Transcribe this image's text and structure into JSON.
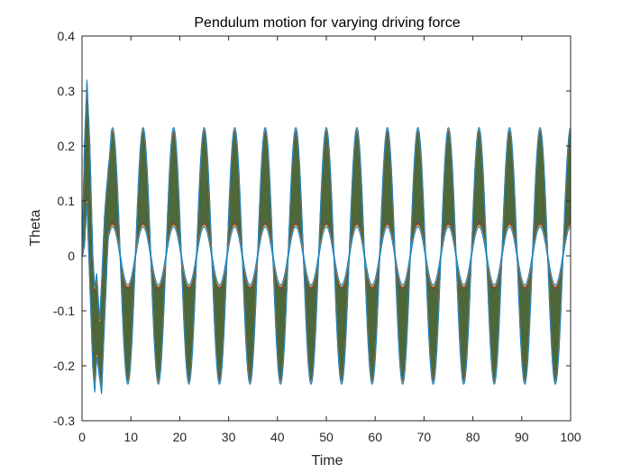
{
  "chart_data": {
    "type": "line",
    "title": "Pendulum motion for varying driving force",
    "xlabel": "Time",
    "ylabel": "Theta",
    "xlim": [
      0,
      100
    ],
    "ylim": [
      -0.3,
      0.4
    ],
    "x_ticks": [
      0,
      10,
      20,
      30,
      40,
      50,
      60,
      70,
      80,
      90,
      100
    ],
    "y_ticks": [
      -0.3,
      -0.2,
      -0.1,
      0,
      0.1,
      0.2,
      0.3,
      0.4
    ],
    "x_tick_labels": [
      "0",
      "10",
      "20",
      "30",
      "40",
      "50",
      "60",
      "70",
      "80",
      "90",
      "100"
    ],
    "y_tick_labels": [
      "-0.3",
      "-0.2",
      "-0.1",
      "0",
      "0.1",
      "0.2",
      "0.3",
      "0.4"
    ],
    "grid": false,
    "legend": "none",
    "series_colors": [
      "#7e2f8e",
      "#a2142f",
      "#77ac30",
      "#d95319",
      "#edb120",
      "#4dbeee",
      "#0072bd"
    ],
    "band_color": "#6b5a3a",
    "envelope": {
      "steady_period": 6.25,
      "outer_peak": 0.23,
      "outer_trough": -0.23,
      "inner_peak": 0.055,
      "inner_trough": -0.057,
      "transient_points": [
        {
          "t": 0,
          "upper": 0.0,
          "lower": 0.0
        },
        {
          "t": 0.5,
          "upper": 0.2,
          "lower": 0.02
        },
        {
          "t": 1.0,
          "upper": 0.317,
          "lower": 0.1
        },
        {
          "t": 1.6,
          "upper": 0.2,
          "lower": -0.05
        },
        {
          "t": 2.2,
          "upper": 0.0,
          "lower": -0.2
        },
        {
          "t": 2.6,
          "upper": -0.06,
          "lower": -0.245
        },
        {
          "t": 3.0,
          "upper": -0.035,
          "lower": -0.18
        },
        {
          "t": 3.6,
          "upper": -0.12,
          "lower": -0.22
        },
        {
          "t": 4.0,
          "upper": -0.05,
          "lower": -0.248
        },
        {
          "t": 4.6,
          "upper": 0.07,
          "lower": -0.12
        },
        {
          "t": 5.4,
          "upper": 0.168,
          "lower": 0.04
        },
        {
          "t": 6.0,
          "upper": 0.165,
          "lower": 0.045
        }
      ]
    }
  }
}
